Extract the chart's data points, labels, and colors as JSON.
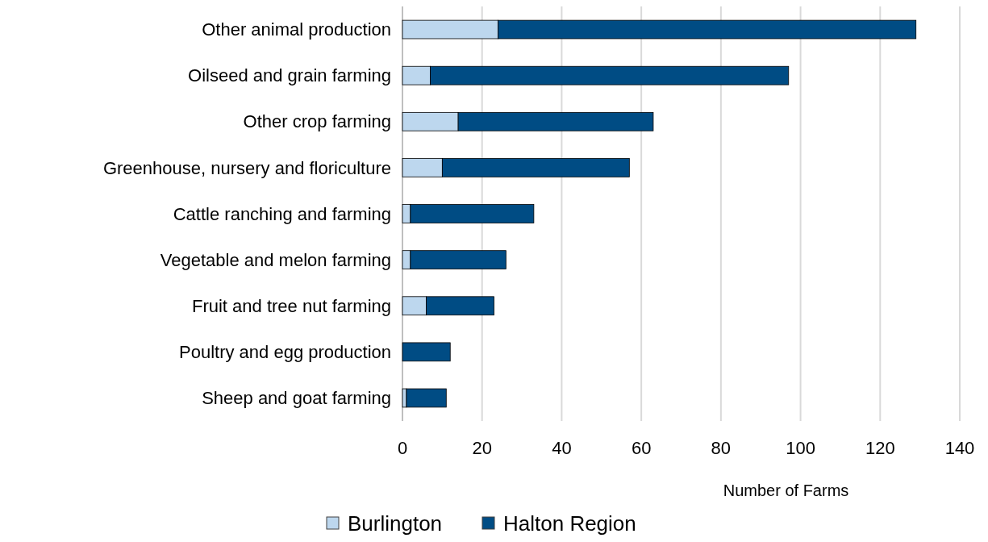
{
  "chart_data": {
    "type": "bar",
    "orientation": "horizontal",
    "stacked": true,
    "categories": [
      "Other animal production",
      "Oilseed and grain farming",
      "Other crop farming",
      "Greenhouse, nursery and floriculture",
      "Cattle ranching and farming",
      "Vegetable and melon farming",
      "Fruit and tree nut farming",
      "Poultry and egg production",
      "Sheep and goat farming"
    ],
    "series": [
      {
        "name": "Burlington",
        "color": "#bdd7ee",
        "values": [
          24,
          7,
          14,
          10,
          2,
          2,
          6,
          0,
          1
        ]
      },
      {
        "name": "Halton Region",
        "color": "#004c84",
        "values": [
          105,
          90,
          49,
          47,
          31,
          24,
          17,
          12,
          10
        ]
      }
    ],
    "xlim": [
      0,
      140
    ],
    "xticks": [
      0,
      20,
      40,
      60,
      80,
      100,
      120,
      140
    ],
    "xlabel": "Number of Farms",
    "grid": "x",
    "legend": "bottom"
  }
}
